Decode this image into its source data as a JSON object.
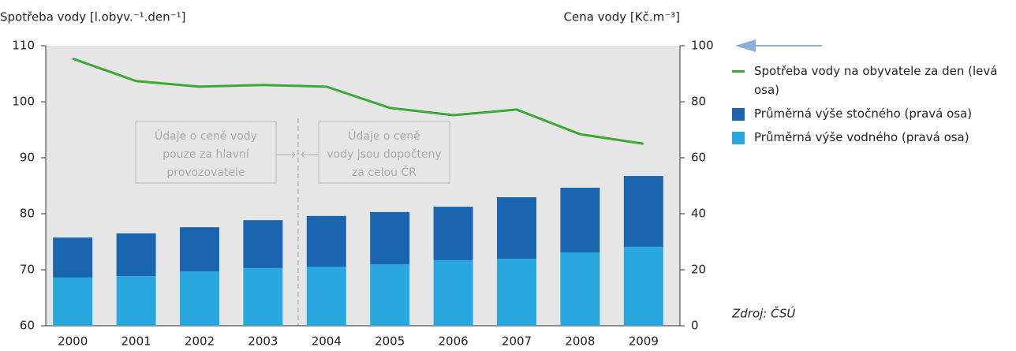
{
  "chart_data": {
    "type": "bar",
    "ylabel": "Spotřeba vody [l.obyv.⁻¹.den⁻¹]",
    "y2label": "Cena vody [Kč.m⁻³]",
    "categories": [
      "2000",
      "2001",
      "2002",
      "2003",
      "2004",
      "2005",
      "2006",
      "2007",
      "2008",
      "2009"
    ],
    "series": [
      {
        "name": "Spotřeba vody na obyvatele za den (levá osa)",
        "type": "line",
        "axis": "y",
        "color": "#3aaa35",
        "values": [
          107.7,
          103.7,
          102.7,
          103.0,
          102.7,
          98.9,
          97.6,
          98.6,
          94.2,
          92.5
        ]
      },
      {
        "name": "Průměrná výše stočného (pravá osa)",
        "type": "bar",
        "axis": "y2",
        "color": "#1a65b0",
        "values": [
          14.3,
          15.3,
          15.8,
          17.1,
          18.1,
          18.6,
          19.1,
          22.0,
          23.1,
          25.3
        ]
      },
      {
        "name": "Průměrná výše vodného (pravá osa)",
        "type": "bar",
        "axis": "y2",
        "color": "#29a8e0",
        "values": [
          17.2,
          17.7,
          19.4,
          20.6,
          21.1,
          22.0,
          23.4,
          23.9,
          26.2,
          28.2
        ]
      }
    ],
    "ylim": [
      60,
      110
    ],
    "yticks": [
      60,
      70,
      80,
      90,
      100,
      110
    ],
    "y2lim": [
      0,
      100
    ],
    "y2ticks": [
      0,
      20,
      40,
      60,
      80,
      100
    ],
    "annotations": [
      {
        "lines": [
          "Údaje o ceně vody",
          "pouze za hlavní",
          "provozovatele"
        ]
      },
      {
        "lines": [
          "Údaje o ceně",
          "vody jsou dopočteny",
          "za celou ČR"
        ]
      }
    ],
    "source": "Zdroj: ČSÚ"
  }
}
